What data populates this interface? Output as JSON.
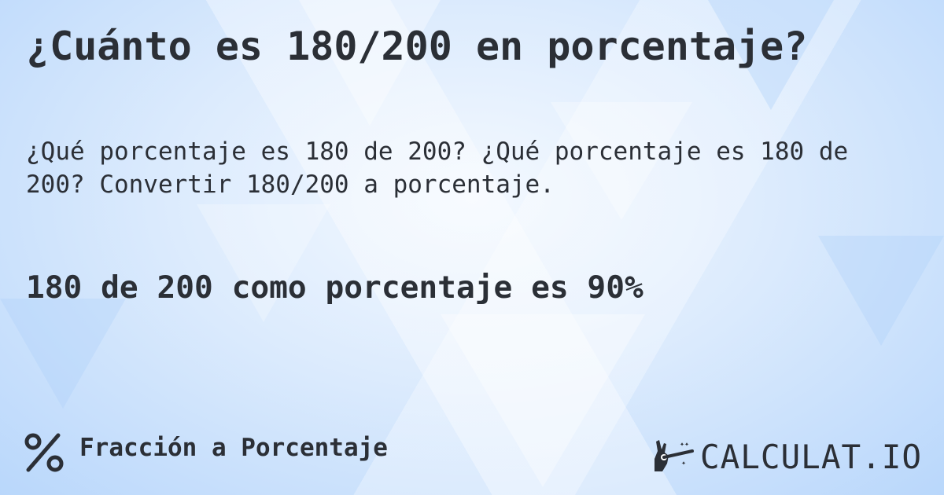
{
  "title": "¿Cuánto es 180/200 en porcentaje?",
  "subtitle": "¿Qué porcentaje es 180 de 200? ¿Qué porcentaje es 180 de 200? Convertir 180/200 a porcentaje.",
  "result": "180 de 200 como porcentaje es 90%",
  "footer": {
    "icon": "percent-icon",
    "label": "Fracción a Porcentaje"
  },
  "logo": {
    "text": "CALCULAT.IO",
    "icon": "magic-wand-hand-icon"
  }
}
